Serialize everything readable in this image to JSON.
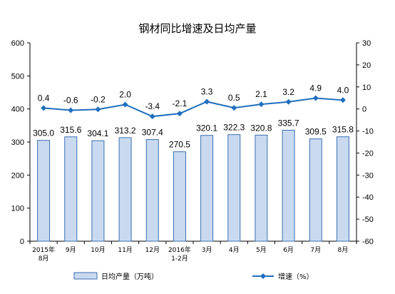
{
  "chart_data": {
    "type": "bar",
    "title": "钢材同比增速及日均产量",
    "categories": [
      "2015年\n8月",
      "9月",
      "10月",
      "11月",
      "12月",
      "2016年\n1-2月",
      "3月",
      "4月",
      "5月",
      "6月",
      "7月",
      "8月"
    ],
    "series": [
      {
        "name": "日均产量（万吨）",
        "type": "bar",
        "axis": "left",
        "values": [
          305.0,
          315.6,
          304.1,
          313.2,
          307.4,
          270.5,
          320.1,
          322.3,
          320.8,
          335.7,
          309.5,
          315.8
        ],
        "labels": [
          "305.0",
          "315.6",
          "304.1",
          "313.2",
          "307.4",
          "270.5",
          "320.1",
          "322.3",
          "320.8",
          "335.7",
          "309.5",
          "315.8"
        ]
      },
      {
        "name": "增速（%）",
        "type": "line",
        "axis": "right",
        "values": [
          0.4,
          -0.6,
          -0.2,
          2.0,
          -3.4,
          -2.1,
          3.3,
          0.5,
          2.1,
          3.2,
          4.9,
          4.0
        ],
        "labels": [
          "0.4",
          "-0.6",
          "-0.2",
          "2.0",
          "-3.4",
          "-2.1",
          "3.3",
          "0.5",
          "2.1",
          "3.2",
          "4.9",
          "4.0"
        ]
      }
    ],
    "y_left": {
      "min": 0,
      "max": 600,
      "step": 100
    },
    "y_right": {
      "min": -60,
      "max": 30,
      "step": 10
    },
    "grid": false,
    "legend_position": "bottom",
    "colors": {
      "bar_fill": "#c9daf0",
      "bar_stroke": "#3d6fb0",
      "line": "#1f6fbf"
    }
  }
}
